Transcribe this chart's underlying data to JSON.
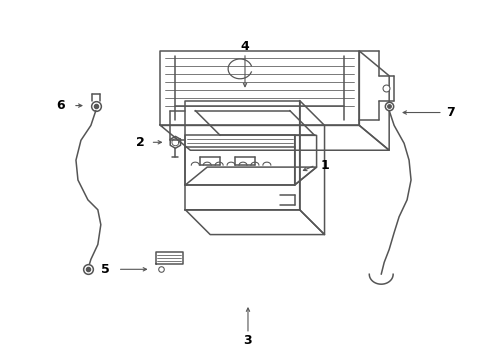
{
  "background_color": "#ffffff",
  "line_color": "#555555",
  "label_color": "#000000",
  "figsize": [
    4.89,
    3.6
  ],
  "dpi": 100,
  "lw": 1.1
}
